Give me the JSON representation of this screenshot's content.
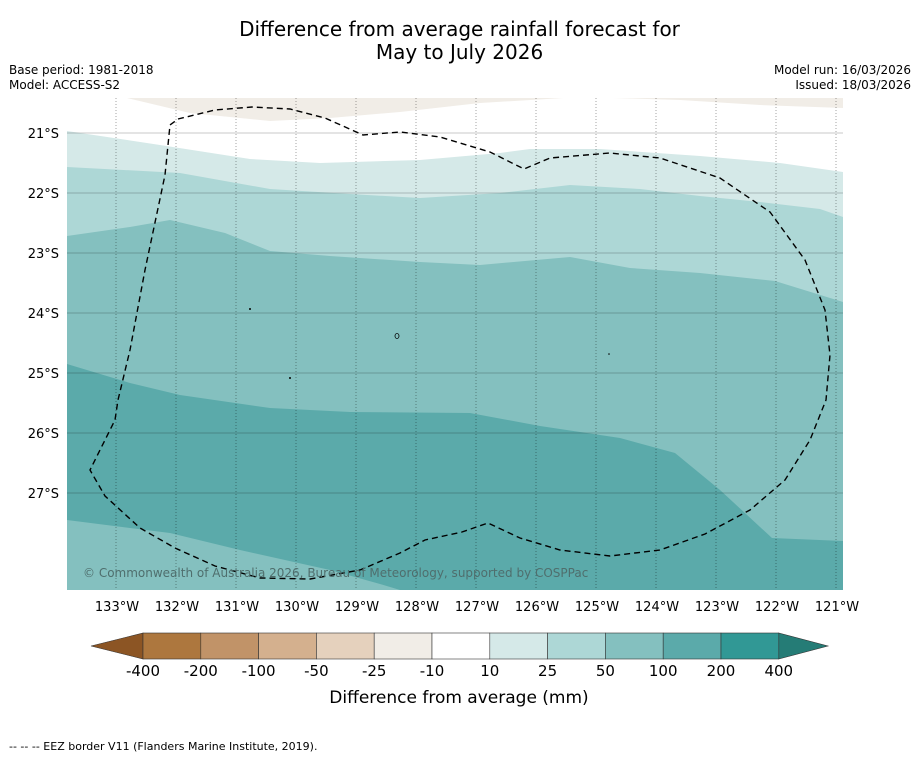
{
  "title": {
    "line1": "Difference from average rainfall forecast for",
    "line2": "May to July 2026"
  },
  "meta": {
    "base_period": "Base period: 1981-2018",
    "model": "Model: ACCESS-S2",
    "model_run": "Model run: 16/03/2026",
    "issued": "Issued: 18/03/2026"
  },
  "map": {
    "lat_labels": [
      "21°S",
      "22°S",
      "23°S",
      "24°S",
      "25°S",
      "26°S",
      "27°S"
    ],
    "lon_labels": [
      "133°W",
      "132°W",
      "131°W",
      "130°W",
      "129°W",
      "128°W",
      "127°W",
      "126°W",
      "125°W",
      "124°W",
      "123°W",
      "122°W",
      "121°W"
    ],
    "copyright": "© Commonwealth of Australia 2026, Bureau of Meteorology, supported by COSPPac",
    "colors": {
      "band_neg10": "#f1ede7",
      "band_10_25": "#d5e9e8",
      "band_25_50": "#add7d6",
      "band_50_100": "#84c0bf",
      "band_100_200": "#5baaaa",
      "band_200_400": "#319895"
    }
  },
  "legend": {
    "ticks": [
      "-400",
      "-200",
      "-100",
      "-50",
      "-25",
      "-10",
      "10",
      "25",
      "50",
      "100",
      "200",
      "400"
    ],
    "colors": [
      "#8c5524",
      "#ad773e",
      "#c19368",
      "#d4b08e",
      "#e5d1bd",
      "#f1ede7",
      "#ffffff",
      "#d5e9e8",
      "#add7d6",
      "#84c0bf",
      "#5baaaa",
      "#319895",
      "#257c76"
    ],
    "label": "Difference from average (mm)"
  },
  "footer": {
    "eez": "--  --  -- EEZ border V11 (Flanders Marine Institute, 2019)."
  }
}
